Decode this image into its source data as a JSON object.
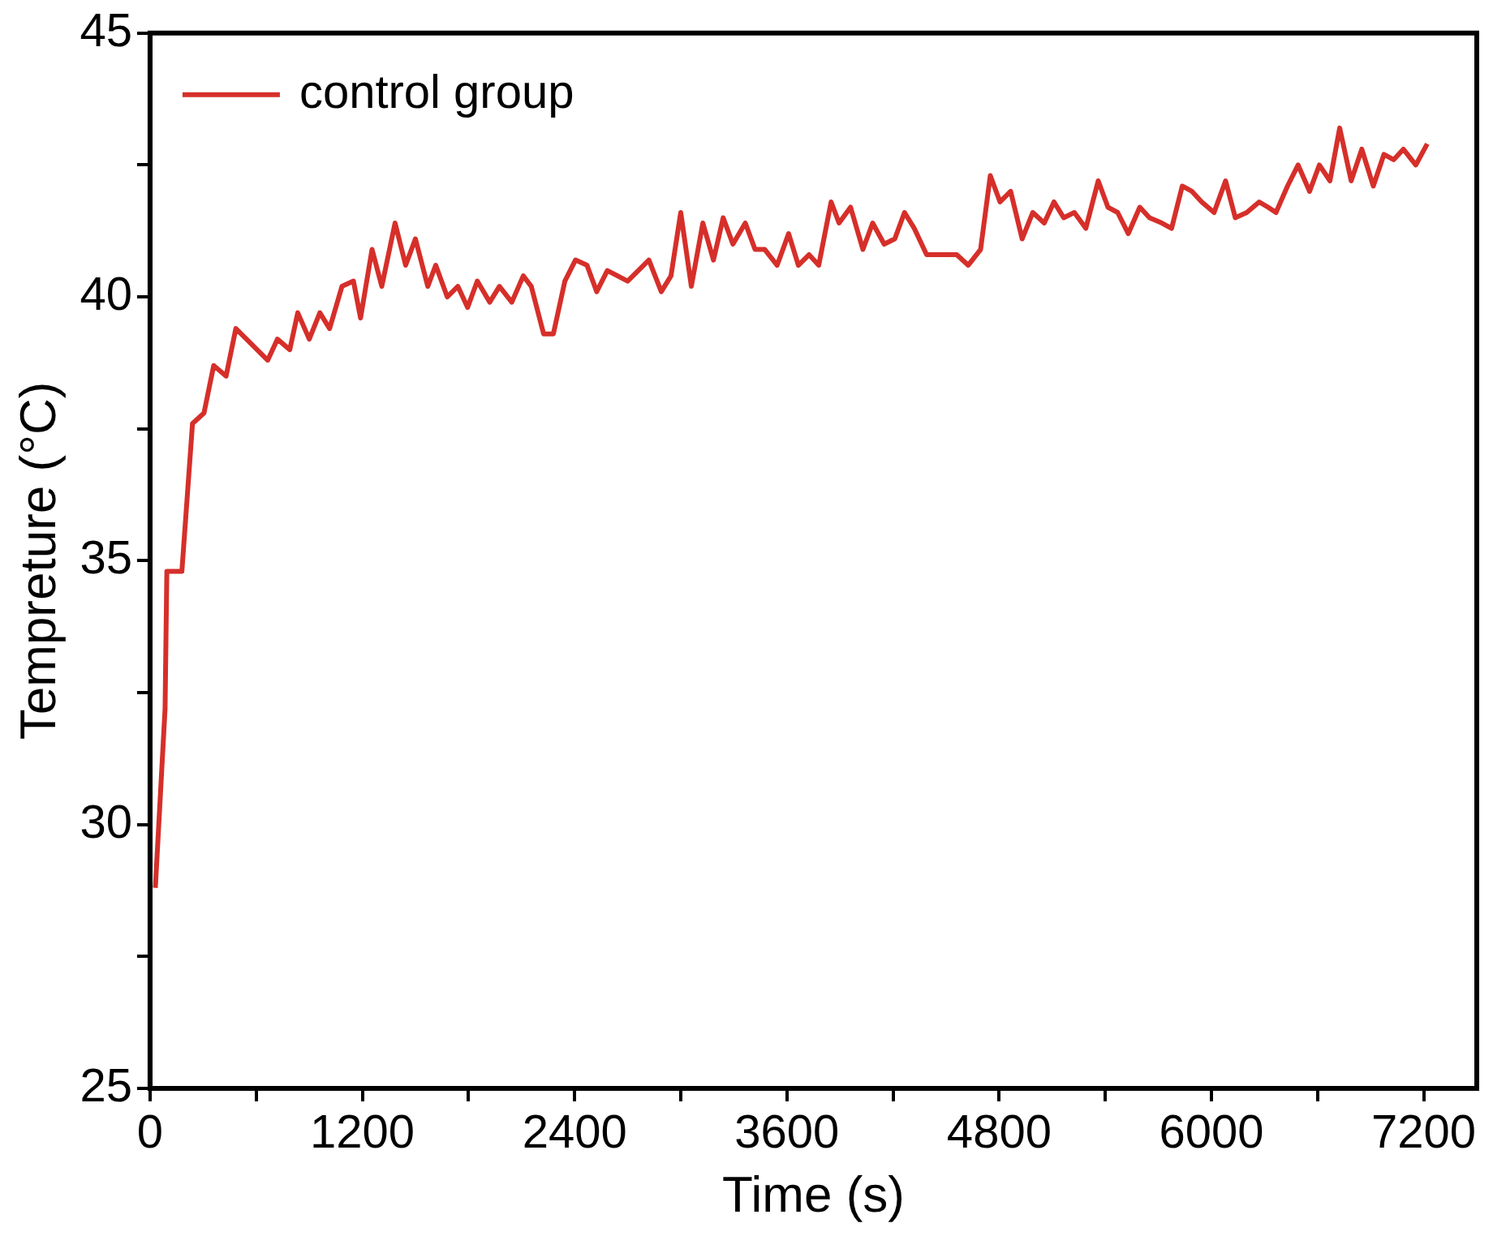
{
  "chart_data": {
    "type": "line",
    "xlabel": "Time (s)",
    "ylabel": "Tempreture (°C)",
    "xlim": [
      0,
      7500
    ],
    "xticks": [
      0,
      {
        "value": 600,
        "label": null
      },
      1200,
      {
        "value": 1800,
        "label": null
      },
      2400,
      {
        "value": 3000,
        "label": null
      },
      3600,
      {
        "value": 4200,
        "label": null
      },
      4800,
      {
        "value": 5400,
        "label": null
      },
      6000,
      {
        "value": 6600,
        "label": null
      },
      7200
    ],
    "ylim": [
      25,
      45
    ],
    "yticks": [
      25,
      {
        "value": 27.5,
        "label": null
      },
      30,
      {
        "value": 32.5,
        "label": null
      },
      35,
      {
        "value": 37.5,
        "label": null
      },
      40,
      {
        "value": 42.5,
        "label": null
      },
      45
    ],
    "grid": false,
    "legend": "top left",
    "marker": "none",
    "line_style": "solid",
    "x": [
      30,
      85,
      95,
      180,
      240,
      305,
      360,
      430,
      485,
      665,
      720,
      790,
      835,
      900,
      960,
      1015,
      1085,
      1150,
      1190,
      1255,
      1310,
      1385,
      1445,
      1500,
      1570,
      1615,
      1680,
      1740,
      1795,
      1850,
      1920,
      1975,
      2045,
      2110,
      2155,
      2225,
      2280,
      2345,
      2405,
      2470,
      2525,
      2585,
      2700,
      2820,
      2890,
      2945,
      3000,
      3060,
      3125,
      3185,
      3240,
      3295,
      3365,
      3420,
      3475,
      3545,
      3610,
      3665,
      3725,
      3780,
      3850,
      3895,
      3960,
      4030,
      4085,
      4150,
      4210,
      4265,
      4320,
      4390,
      4560,
      4625,
      4695,
      4750,
      4805,
      4865,
      4930,
      4990,
      5055,
      5110,
      5165,
      5225,
      5290,
      5360,
      5415,
      5470,
      5530,
      5595,
      5650,
      5720,
      5775,
      5835,
      5890,
      5945,
      6015,
      6080,
      6135,
      6200,
      6270,
      6320,
      6365,
      6430,
      6490,
      6555,
      6610,
      6670,
      6725,
      6790,
      6850,
      6915,
      6975,
      7030,
      7085,
      7155,
      7220
    ],
    "series": [
      {
        "name": "control group",
        "color": "#d62f2a",
        "values": [
          28.8,
          32.2,
          34.8,
          34.8,
          37.6,
          37.8,
          38.7,
          38.5,
          39.4,
          38.8,
          39.2,
          39.0,
          39.7,
          39.2,
          39.7,
          39.4,
          40.2,
          40.3,
          39.6,
          40.9,
          40.2,
          41.4,
          40.6,
          41.1,
          40.2,
          40.6,
          40.0,
          40.2,
          39.8,
          40.3,
          39.9,
          40.2,
          39.9,
          40.4,
          40.2,
          39.3,
          39.3,
          40.3,
          40.7,
          40.6,
          40.1,
          40.5,
          40.3,
          40.7,
          40.1,
          40.4,
          41.6,
          40.2,
          41.4,
          40.7,
          41.5,
          41.0,
          41.4,
          40.9,
          40.9,
          40.6,
          41.2,
          40.6,
          40.8,
          40.6,
          41.8,
          41.4,
          41.7,
          40.9,
          41.4,
          41.0,
          41.1,
          41.6,
          41.3,
          40.8,
          40.8,
          40.6,
          40.9,
          42.3,
          41.8,
          42.0,
          41.1,
          41.6,
          41.4,
          41.8,
          41.5,
          41.6,
          41.3,
          42.2,
          41.7,
          41.6,
          41.2,
          41.7,
          41.5,
          41.4,
          41.3,
          42.1,
          42.0,
          41.8,
          41.6,
          42.2,
          41.5,
          41.6,
          41.8,
          41.7,
          41.6,
          42.1,
          42.5,
          42.0,
          42.5,
          42.2,
          43.2,
          42.2,
          42.8,
          42.1,
          42.7,
          42.6,
          42.8,
          42.5,
          42.9
        ]
      }
    ]
  }
}
